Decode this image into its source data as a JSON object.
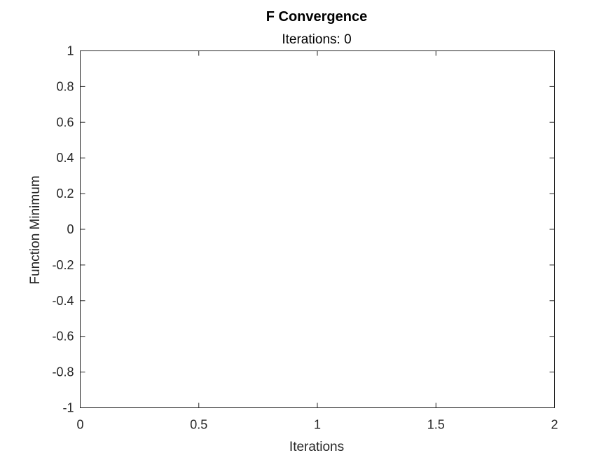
{
  "chart_data": {
    "type": "line",
    "title": "F Convergence",
    "subtitle": "Iterations: 0",
    "xlabel": "Iterations",
    "ylabel": "Function Minimum",
    "xlim": [
      0,
      2
    ],
    "ylim": [
      -1,
      1
    ],
    "x_ticks": [
      0,
      0.5,
      1,
      1.5,
      2
    ],
    "x_tick_labels": [
      "0",
      "0.5",
      "1",
      "1.5",
      "2"
    ],
    "y_ticks": [
      -1,
      -0.8,
      -0.6,
      -0.4,
      -0.2,
      0,
      0.2,
      0.4,
      0.6,
      0.8,
      1
    ],
    "y_tick_labels": [
      "-1",
      "-0.8",
      "-0.6",
      "-0.4",
      "-0.2",
      "0",
      "0.2",
      "0.4",
      "0.6",
      "0.8",
      "1"
    ],
    "grid": false,
    "series": []
  }
}
